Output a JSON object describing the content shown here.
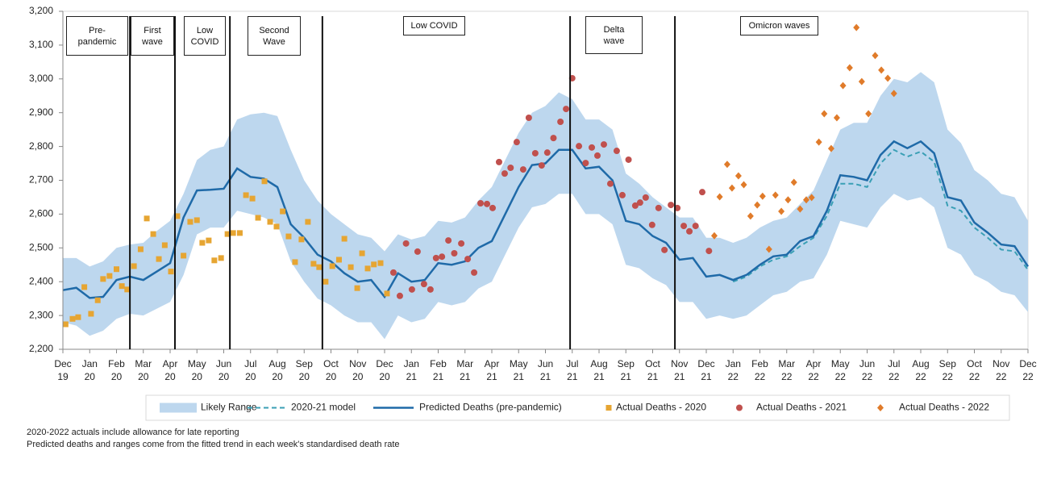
{
  "chart_data": {
    "type": "line",
    "xlim": [
      0,
      36
    ],
    "ylim": [
      2200,
      3200
    ],
    "yticks": [
      {
        "value": 2200,
        "label": "2,200"
      },
      {
        "value": 2300,
        "label": "2,300"
      },
      {
        "value": 2400,
        "label": "2,400"
      },
      {
        "value": 2500,
        "label": "2,500"
      },
      {
        "value": 2600,
        "label": "2,600"
      },
      {
        "value": 2700,
        "label": "2,700"
      },
      {
        "value": 2800,
        "label": "2,800"
      },
      {
        "value": 2900,
        "label": "2,900"
      },
      {
        "value": 3000,
        "label": "3,000"
      },
      {
        "value": 3100,
        "label": "3,100"
      },
      {
        "value": 3200,
        "label": "3,200"
      }
    ],
    "xticks": [
      {
        "value": 0,
        "label": "Dec 19"
      },
      {
        "value": 1,
        "label": "Jan 20"
      },
      {
        "value": 2,
        "label": "Feb 20"
      },
      {
        "value": 3,
        "label": "Mar 20"
      },
      {
        "value": 4,
        "label": "Apr 20"
      },
      {
        "value": 5,
        "label": "May 20"
      },
      {
        "value": 6,
        "label": "Jun 20"
      },
      {
        "value": 7,
        "label": "Jul 20"
      },
      {
        "value": 8,
        "label": "Aug 20"
      },
      {
        "value": 9,
        "label": "Sep 20"
      },
      {
        "value": 10,
        "label": "Oct 20"
      },
      {
        "value": 11,
        "label": "Nov 20"
      },
      {
        "value": 12,
        "label": "Dec 20"
      },
      {
        "value": 13,
        "label": "Jan 21"
      },
      {
        "value": 14,
        "label": "Feb 21"
      },
      {
        "value": 15,
        "label": "Mar 21"
      },
      {
        "value": 16,
        "label": "Apr 21"
      },
      {
        "value": 17,
        "label": "May 21"
      },
      {
        "value": 18,
        "label": "Jun 21"
      },
      {
        "value": 19,
        "label": "Jul 21"
      },
      {
        "value": 20,
        "label": "Aug 21"
      },
      {
        "value": 21,
        "label": "Sep 21"
      },
      {
        "value": 22,
        "label": "Oct 21"
      },
      {
        "value": 23,
        "label": "Nov 21"
      },
      {
        "value": 24,
        "label": "Dec 21"
      },
      {
        "value": 25,
        "label": "Jan 22"
      },
      {
        "value": 26,
        "label": "Feb 22"
      },
      {
        "value": 27,
        "label": "Mar 22"
      },
      {
        "value": 28,
        "label": "Apr 22"
      },
      {
        "value": 29,
        "label": "May 22"
      },
      {
        "value": 30,
        "label": "Jun 22"
      },
      {
        "value": 31,
        "label": "Jul 22"
      },
      {
        "value": 32,
        "label": "Aug 22"
      },
      {
        "value": 33,
        "label": "Sep 22"
      },
      {
        "value": 34,
        "label": "Oct 22"
      },
      {
        "value": 35,
        "label": "Nov 22"
      },
      {
        "value": 36,
        "label": "Dec 22"
      }
    ],
    "x": [
      0,
      0.5,
      1,
      1.5,
      2,
      2.5,
      3,
      3.5,
      4,
      4.5,
      5,
      5.5,
      6,
      6.5,
      7,
      7.5,
      8,
      8.5,
      9,
      9.5,
      10,
      10.5,
      11,
      11.5,
      12,
      12.5,
      13,
      13.5,
      14,
      14.5,
      15,
      15.5,
      16,
      16.5,
      17,
      17.5,
      18,
      18.5,
      19,
      19.5,
      20,
      20.5,
      21,
      21.5,
      22,
      22.5,
      23,
      23.5,
      24,
      24.5,
      25,
      25.5,
      26,
      26.5,
      27,
      27.5,
      28,
      28.5,
      29,
      29.5,
      30,
      30.5,
      31,
      31.5,
      32,
      32.5,
      33,
      33.5,
      34,
      34.5,
      35,
      35.5,
      36
    ],
    "series": [
      {
        "name": "Likely Range",
        "type": "area",
        "color": "#bdd7ee",
        "high": [
          2470,
          2470,
          2445,
          2460,
          2500,
          2510,
          2515,
          2550,
          2580,
          2660,
          2760,
          2790,
          2800,
          2880,
          2895,
          2900,
          2890,
          2790,
          2700,
          2640,
          2600,
          2570,
          2540,
          2530,
          2490,
          2540,
          2525,
          2535,
          2580,
          2575,
          2590,
          2640,
          2680,
          2760,
          2840,
          2900,
          2920,
          2960,
          2940,
          2880,
          2880,
          2850,
          2720,
          2690,
          2650,
          2620,
          2590,
          2590,
          2530,
          2530,
          2515,
          2530,
          2560,
          2580,
          2590,
          2630,
          2670,
          2760,
          2850,
          2870,
          2870,
          2950,
          3000,
          2990,
          3020,
          2990,
          2850,
          2810,
          2730,
          2700,
          2660,
          2650,
          2580
        ],
        "low": [
          2280,
          2270,
          2240,
          2255,
          2290,
          2305,
          2300,
          2320,
          2340,
          2420,
          2540,
          2560,
          2560,
          2610,
          2600,
          2590,
          2570,
          2460,
          2400,
          2350,
          2330,
          2300,
          2280,
          2280,
          2230,
          2300,
          2280,
          2290,
          2340,
          2330,
          2340,
          2380,
          2400,
          2480,
          2560,
          2620,
          2630,
          2660,
          2660,
          2600,
          2600,
          2570,
          2450,
          2440,
          2410,
          2390,
          2340,
          2340,
          2290,
          2300,
          2290,
          2300,
          2330,
          2360,
          2370,
          2400,
          2410,
          2480,
          2580,
          2570,
          2560,
          2620,
          2660,
          2640,
          2650,
          2620,
          2500,
          2480,
          2420,
          2400,
          2370,
          2360,
          2310
        ]
      },
      {
        "name": "2020-21 model",
        "type": "line",
        "dashed": true,
        "color": "#3a9fb5",
        "values": [
          null,
          null,
          null,
          null,
          null,
          null,
          null,
          null,
          null,
          null,
          null,
          null,
          null,
          null,
          null,
          null,
          null,
          null,
          null,
          null,
          null,
          null,
          null,
          null,
          null,
          null,
          null,
          null,
          null,
          null,
          null,
          null,
          null,
          null,
          null,
          null,
          null,
          null,
          null,
          null,
          null,
          null,
          null,
          null,
          null,
          null,
          null,
          null,
          null,
          null,
          2400,
          2415,
          2445,
          2465,
          2475,
          2505,
          2530,
          2595,
          2690,
          2690,
          2680,
          2750,
          2790,
          2770,
          2785,
          2755,
          2625,
          2610,
          2560,
          2530,
          2495,
          2490,
          2435
        ]
      },
      {
        "name": "Predicted Deaths (pre-pandemic)",
        "type": "line",
        "dashed": false,
        "color": "#1f6aa8",
        "values": [
          2375,
          2382,
          2352,
          2355,
          2405,
          2415,
          2405,
          2430,
          2455,
          2590,
          2670,
          2672,
          2675,
          2735,
          2710,
          2705,
          2680,
          2570,
          2530,
          2480,
          2460,
          2425,
          2400,
          2405,
          2355,
          2425,
          2400,
          2405,
          2455,
          2450,
          2460,
          2500,
          2520,
          2600,
          2680,
          2745,
          2750,
          2790,
          2790,
          2735,
          2740,
          2700,
          2580,
          2570,
          2535,
          2515,
          2465,
          2470,
          2415,
          2420,
          2405,
          2420,
          2450,
          2475,
          2480,
          2520,
          2535,
          2610,
          2715,
          2710,
          2700,
          2775,
          2815,
          2795,
          2815,
          2780,
          2650,
          2640,
          2575,
          2545,
          2510,
          2505,
          2445
        ]
      },
      {
        "name": "Actual Deaths - 2020",
        "type": "scatter",
        "marker": "square",
        "color": "#e6a532",
        "x": [
          0.1,
          0.36,
          0.57,
          0.8,
          1.05,
          1.3,
          1.5,
          1.74,
          2.0,
          2.2,
          2.4,
          2.65,
          2.9,
          3.13,
          3.37,
          3.58,
          3.8,
          4.03,
          4.27,
          4.5,
          4.75,
          5.0,
          5.2,
          5.44,
          5.65,
          5.9,
          6.14,
          6.35,
          6.6,
          6.83,
          7.07,
          7.28,
          7.52,
          7.73,
          7.97,
          8.2,
          8.42,
          8.66,
          8.9,
          9.14,
          9.35,
          9.56,
          9.8,
          10.05,
          10.3,
          10.5,
          10.74,
          10.98,
          11.16,
          11.37,
          11.6,
          11.85,
          12.09
        ],
        "values": [
          2274,
          2290,
          2295,
          2384,
          2305,
          2345,
          2408,
          2417,
          2437,
          2387,
          2377,
          2446,
          2496,
          2587,
          2541,
          2467,
          2508,
          2430,
          2594,
          2477,
          2577,
          2582,
          2515,
          2522,
          2463,
          2470,
          2541,
          2544,
          2544,
          2656,
          2646,
          2589,
          2697,
          2577,
          2563,
          2608,
          2534,
          2458,
          2525,
          2577,
          2453,
          2443,
          2400,
          2446,
          2465,
          2527,
          2443,
          2381,
          2484,
          2439,
          2451,
          2455,
          2365
        ]
      },
      {
        "name": "Actual Deaths - 2021",
        "type": "scatter",
        "marker": "circle",
        "color": "#c0504d",
        "x": [
          12.33,
          12.57,
          12.8,
          13.02,
          13.23,
          13.47,
          13.71,
          13.92,
          14.14,
          14.38,
          14.6,
          14.86,
          15.1,
          15.34,
          15.58,
          15.82,
          16.03,
          16.27,
          16.48,
          16.7,
          16.93,
          17.17,
          17.38,
          17.62,
          17.86,
          18.07,
          18.3,
          18.56,
          18.77,
          19.0,
          19.25,
          19.5,
          19.73,
          19.94,
          20.18,
          20.42,
          20.66,
          20.87,
          21.1,
          21.35,
          21.53,
          21.74,
          21.98,
          22.22,
          22.44,
          22.68,
          22.92,
          23.16,
          23.37,
          23.6,
          23.85,
          24.1
        ],
        "values": [
          2427,
          2358,
          2513,
          2377,
          2489,
          2393,
          2377,
          2470,
          2474,
          2522,
          2484,
          2513,
          2467,
          2427,
          2632,
          2630,
          2618,
          2754,
          2720,
          2737,
          2813,
          2732,
          2885,
          2780,
          2744,
          2782,
          2825,
          2873,
          2911,
          3002,
          2801,
          2751,
          2797,
          2773,
          2806,
          2690,
          2787,
          2656,
          2761,
          2625,
          2634,
          2649,
          2568,
          2618,
          2494,
          2627,
          2618,
          2565,
          2549,
          2565,
          2665,
          2491
        ]
      },
      {
        "name": "Actual Deaths - 2022",
        "type": "scatter",
        "marker": "diamond",
        "color": "#e07b2a",
        "x": [
          24.3,
          24.5,
          24.78,
          24.96,
          25.2,
          25.4,
          25.65,
          25.9,
          26.1,
          26.34,
          26.58,
          26.8,
          27.05,
          27.27,
          27.5,
          27.73,
          27.93,
          28.2,
          28.4,
          28.66,
          28.87,
          29.1,
          29.35,
          29.6,
          29.8,
          30.05,
          30.3,
          30.53,
          30.77,
          31.0
        ],
        "values": [
          2536,
          2651,
          2747,
          2677,
          2713,
          2687,
          2594,
          2627,
          2653,
          2496,
          2656,
          2608,
          2642,
          2694,
          2615,
          2642,
          2649,
          2813,
          2897,
          2794,
          2885,
          2980,
          3033,
          3152,
          2992,
          2897,
          3069,
          3026,
          3002,
          2957
        ]
      }
    ],
    "phase_lines": [
      2.5,
      4.18,
      6.23,
      9.68,
      18.92,
      22.83
    ],
    "phases": [
      "Pre-pandemic",
      "First wave",
      "Low COVID",
      "Second Wave",
      "Low COVID",
      "Delta wave",
      "Omicron waves"
    ],
    "notes": [
      "2020-2022 actuals include allowance for late reporting",
      "Predicted deaths and ranges come from the fitted trend in each week's standardised death rate"
    ]
  }
}
